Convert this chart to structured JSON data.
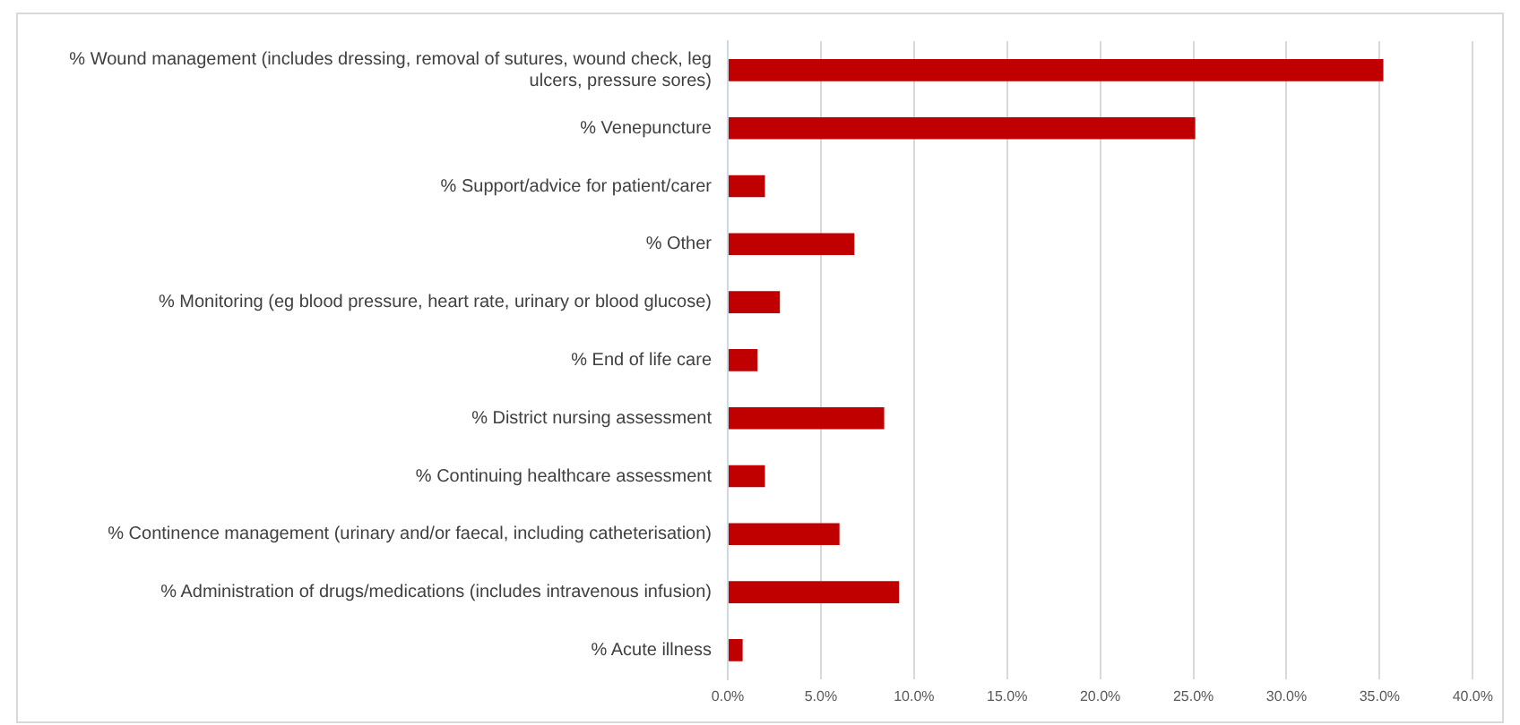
{
  "chart_data": {
    "type": "bar",
    "orientation": "horizontal",
    "categories": [
      "% Wound management (includes dressing, removal of sutures, wound check, leg ulcers, pressure sores)",
      "% Venepuncture",
      "% Support/advice for patient/carer",
      "% Other",
      "% Monitoring (eg blood pressure, heart rate, urinary or blood glucose)",
      "% End of life care",
      "% District nursing assessment",
      "% Continuing healthcare assessment",
      "% Continence management (urinary and/or faecal, including catheterisation)",
      "% Administration of drugs/medications (includes intravenous infusion)",
      "% Acute illness"
    ],
    "values": [
      35.2,
      25.1,
      2.0,
      6.8,
      2.8,
      1.6,
      8.4,
      2.0,
      6.0,
      9.2,
      0.8
    ],
    "color": "#c00000",
    "xlim": [
      0,
      40
    ],
    "xticks": [
      {
        "value": 0,
        "label": "0.0%"
      },
      {
        "value": 5,
        "label": "5.0%"
      },
      {
        "value": 10,
        "label": "10.0%"
      },
      {
        "value": 15,
        "label": "15.0%"
      },
      {
        "value": 20,
        "label": "20.0%"
      },
      {
        "value": 25,
        "label": "25.0%"
      },
      {
        "value": 30,
        "label": "30.0%"
      },
      {
        "value": 35,
        "label": "35.0%"
      },
      {
        "value": 40,
        "label": "40.0%"
      }
    ],
    "grid": "x"
  }
}
